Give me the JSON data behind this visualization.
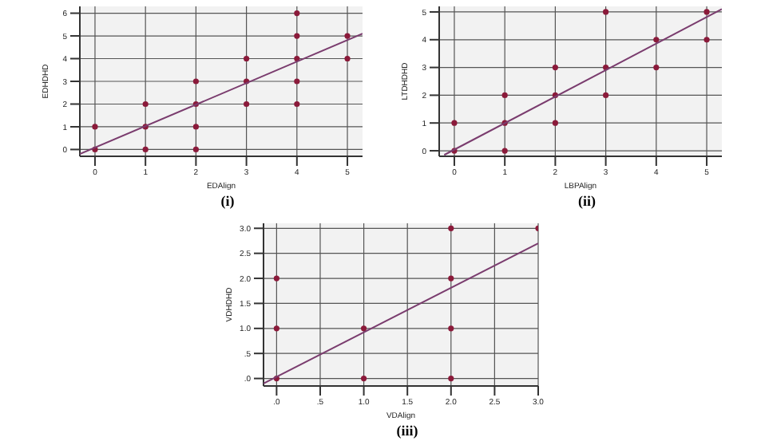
{
  "chart_data": [
    {
      "type": "scatter",
      "xlabel": "EDAlign",
      "ylabel": "EDHDHD",
      "marker": "circle",
      "grid": true,
      "xlim": [
        -0.3,
        5.3
      ],
      "ylim": [
        -0.3,
        6.3
      ],
      "xticks": [
        0,
        1,
        2,
        3,
        4,
        5
      ],
      "yticks": [
        0,
        1,
        2,
        3,
        4,
        5,
        6
      ],
      "annotations": [
        "(i)"
      ],
      "series": [
        {
          "type": "scatter",
          "color": "#8b1a3a",
          "x": [
            0,
            0,
            1,
            1,
            1,
            2,
            2,
            2,
            2,
            3,
            3,
            3,
            4,
            4,
            4,
            4,
            4,
            5,
            5
          ],
          "values": [
            0,
            1,
            0,
            1,
            2,
            0,
            1,
            2,
            3,
            2,
            3,
            4,
            2,
            3,
            4,
            5,
            6,
            4,
            5
          ]
        },
        {
          "type": "line",
          "color": "#7a3c6e",
          "marker": "none",
          "x": [
            -0.3,
            5.3
          ],
          "values": [
            -0.2,
            5.1
          ]
        }
      ]
    },
    {
      "type": "scatter",
      "xlabel": "LBPAlign",
      "ylabel": "LTDHDHD",
      "marker": "circle",
      "grid": true,
      "xlim": [
        -0.3,
        5.3
      ],
      "ylim": [
        -0.2,
        5.2
      ],
      "xticks": [
        0,
        1,
        2,
        3,
        4,
        5
      ],
      "yticks": [
        0,
        1,
        2,
        3,
        4,
        5
      ],
      "annotations": [
        "(ii)"
      ],
      "series": [
        {
          "type": "scatter",
          "color": "#8b1a3a",
          "x": [
            0,
            0,
            1,
            1,
            1,
            2,
            2,
            2,
            3,
            3,
            3,
            4,
            4,
            5,
            5
          ],
          "values": [
            0,
            1,
            0,
            1,
            2,
            1,
            2,
            3,
            2,
            3,
            5,
            3,
            4,
            4,
            5
          ]
        },
        {
          "type": "line",
          "color": "#7a3c6e",
          "marker": "none",
          "x": [
            -0.2,
            5.3
          ],
          "values": [
            -0.15,
            5.1
          ]
        }
      ]
    },
    {
      "type": "scatter",
      "xlabel": "VDAlign",
      "ylabel": "VDHDHD",
      "marker": "circle",
      "grid": true,
      "xlim": [
        -0.15,
        3.0
      ],
      "ylim": [
        -0.15,
        3.1
      ],
      "xticks": [
        {
          "value": 0,
          "label": ".0"
        },
        {
          "value": 0.5,
          "label": ".5"
        },
        {
          "value": 1,
          "label": "1.0"
        },
        {
          "value": 1.5,
          "label": "1.5"
        },
        {
          "value": 2,
          "label": "2.0"
        },
        {
          "value": 2.5,
          "label": "2.5"
        },
        {
          "value": 3,
          "label": "3.0"
        }
      ],
      "yticks": [
        {
          "value": 0,
          "label": ".0"
        },
        {
          "value": 0.5,
          "label": ".5"
        },
        {
          "value": 1,
          "label": "1.0"
        },
        {
          "value": 1.5,
          "label": "1.5"
        },
        {
          "value": 2,
          "label": "2.0"
        },
        {
          "value": 2.5,
          "label": "2.5"
        },
        {
          "value": 3,
          "label": "3.0"
        }
      ],
      "annotations": [
        "(iii)"
      ],
      "series": [
        {
          "type": "scatter",
          "color": "#8b1a3a",
          "x": [
            0,
            0,
            0,
            1,
            1,
            2,
            2,
            2,
            2,
            3
          ],
          "values": [
            0,
            1,
            2,
            0,
            1,
            0,
            1,
            2,
            3,
            3
          ]
        },
        {
          "type": "line",
          "color": "#7a3c6e",
          "marker": "none",
          "x": [
            -0.15,
            3.0
          ],
          "values": [
            -0.1,
            2.7
          ]
        }
      ]
    }
  ]
}
